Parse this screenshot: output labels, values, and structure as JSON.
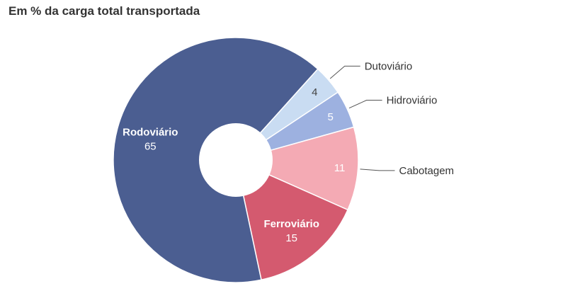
{
  "chart_data": {
    "type": "pie",
    "title": "Em % da carga total transportada",
    "slices": [
      {
        "label": "Dutoviário",
        "value": 4,
        "color": "#c9dcf2",
        "value_color": "#444444",
        "label_outside": true
      },
      {
        "label": "Hidroviário",
        "value": 5,
        "color": "#9db1e0",
        "value_color": "#ffffff",
        "label_outside": true
      },
      {
        "label": "Cabotagem",
        "value": 11,
        "color": "#f4aab4",
        "value_color": "#ffffff",
        "label_outside": true
      },
      {
        "label": "Ferroviário",
        "value": 15,
        "color": "#d45a6f",
        "value_color": "#ffffff",
        "label_outside": false
      },
      {
        "label": "Rodoviário",
        "value": 65,
        "color": "#4b5e91",
        "value_color": "#ffffff",
        "label_outside": false
      }
    ],
    "donut": true,
    "legend": "none"
  }
}
